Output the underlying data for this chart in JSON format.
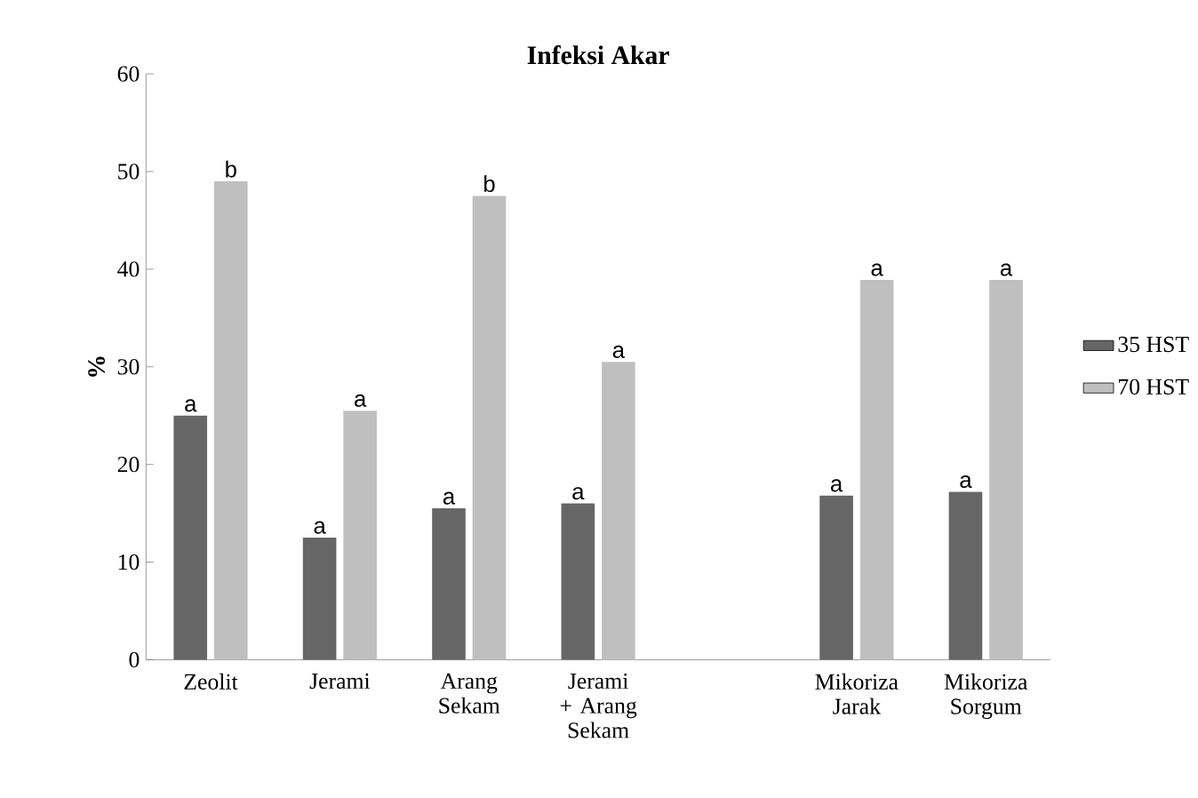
{
  "chart_data": {
    "type": "bar",
    "title": "Infeksi Akar",
    "ylabel": "%",
    "categories": [
      "Zeolit",
      "Jerami",
      "Arang Sekam",
      "Jerami + Arang Sekam",
      null,
      "Mikoriza Jarak",
      "Mikoriza Sorgum"
    ],
    "series": [
      {
        "name": "35 HST",
        "color": "#666666",
        "values": [
          25,
          12.5,
          15.5,
          16,
          null,
          16.8,
          17.2
        ],
        "value_labels": [
          "a",
          "a",
          "a",
          "a",
          null,
          "a",
          "a"
        ]
      },
      {
        "name": "70 HST",
        "color": "#bfbfbf",
        "values": [
          49,
          25.5,
          47.5,
          30.5,
          null,
          38.9,
          38.9
        ],
        "value_labels": [
          "b",
          "a",
          "b",
          "a",
          null,
          "a",
          "a"
        ]
      }
    ],
    "ylim": [
      0,
      60
    ],
    "yticks": [
      0,
      10,
      20,
      30,
      40,
      50,
      60
    ],
    "grid": false,
    "legend": "right"
  }
}
